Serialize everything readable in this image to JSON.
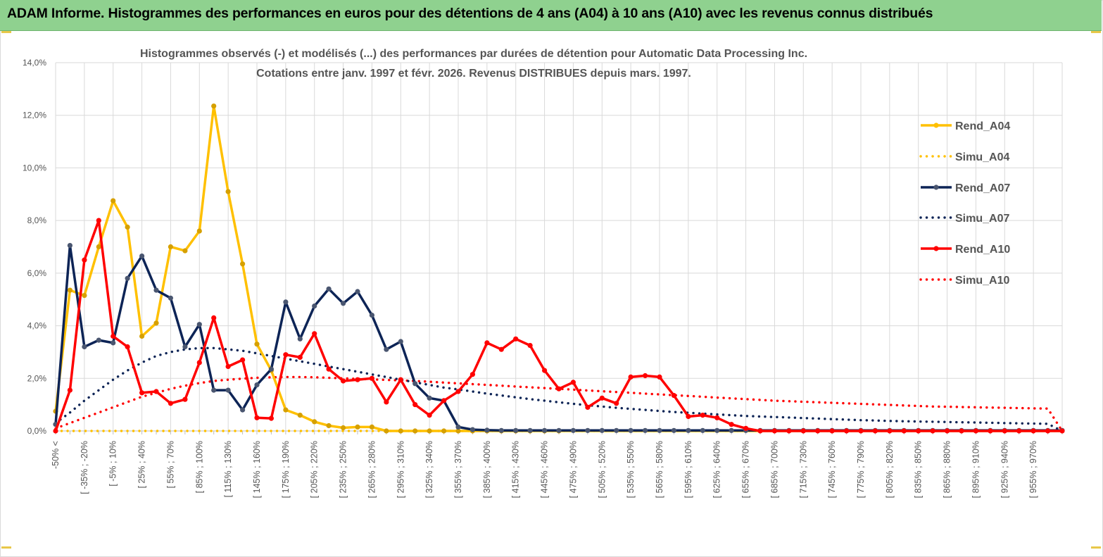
{
  "banner": {
    "title": "ADAM Informe. Histogrammes des performances en euros pour des détentions de 4 ans (A04) à 10 ans (A10) avec les revenus connus distribués"
  },
  "colors": {
    "banner_bg": "#8fd18f",
    "A04": "#ffc000",
    "A07": "#0d2456",
    "A10": "#ff0000",
    "grid": "#d9d9d9"
  },
  "chart_data": {
    "type": "line",
    "title": "Histogrammes observés (-) et modélisés (...) des performances par durées de détention pour Automatic Data Processing Inc.",
    "subtitle": "Cotations entre janv. 1997 et févr. 2026. Revenus DISTRIBUES depuis mars. 1997.",
    "ylim": [
      0,
      14
    ],
    "y_ticks": [
      "0,0%",
      "2,0%",
      "4,0%",
      "6,0%",
      "8,0%",
      "10,0%",
      "12,0%",
      "14,0%"
    ],
    "x_tick_labels": [
      "-50% <",
      "[ -35% ; -20%",
      "[ -5% ; 10%",
      "[ 25% ; 40%",
      "[ 55% ; 70%",
      "[ 85% ; 100%",
      "[ 115% ; 130%",
      "[ 145% ; 160%",
      "[ 175% ; 190%",
      "[ 205% ; 220%",
      "[ 235% ; 250%",
      "[ 265% ; 280%",
      "[ 295% ; 310%",
      "[ 325% ; 340%",
      "[ 355% ; 370%",
      "[ 385% ; 400%",
      "[ 415% ; 430%",
      "[ 445% ; 460%",
      "[ 475% ; 490%",
      "[ 505% ; 520%",
      "[ 535% ; 550%",
      "[ 565% ; 580%",
      "[ 595% ; 610%",
      "[ 625% ; 640%",
      "[ 655% ; 670%",
      "[ 685% ; 700%",
      "[ 715% ; 730%",
      "[ 745% ; 760%",
      "[ 775% ; 790%",
      "[ 805% ; 820%",
      "[ 835% ; 850%",
      "[ 865% ; 880%",
      "[ 895% ; 910%",
      "[ 925% ; 940%",
      "[ 955% ; 970%"
    ],
    "legend_position": "right",
    "grid": true,
    "series": [
      {
        "name": "Rend_A04",
        "style": "solid",
        "color": "#ffc000",
        "values": [
          0.75,
          5.35,
          5.15,
          7.0,
          8.75,
          7.75,
          3.6,
          4.1,
          7.0,
          6.85,
          7.6,
          12.35,
          9.1,
          6.35,
          3.3,
          2.3,
          0.8,
          0.6,
          0.35,
          0.2,
          0.12,
          0.15,
          0.15,
          0.0,
          0.0,
          0.0,
          0.0,
          0.0,
          0.0,
          0.0,
          0.0,
          0.0,
          0.0,
          0.0,
          0.0,
          0.0,
          0.0,
          0.0,
          0.0,
          0.0,
          0.0,
          0.0,
          0.0,
          0.0,
          0.0,
          0.0,
          0.0,
          0.0,
          0.0,
          0.0,
          0.0,
          0.0,
          0.0,
          0.0,
          0.0,
          0.0,
          0.0,
          0.0,
          0.0,
          0.0,
          0.0,
          0.0,
          0.0,
          0.0,
          0.0,
          0.0,
          0.0,
          0.0,
          0.0,
          0.0,
          0.0
        ]
      },
      {
        "name": "Simu_A04",
        "style": "dotted",
        "color": "#ffc000",
        "values": [
          0.0,
          0.0,
          0.0,
          0.0,
          0.0,
          0.0,
          0.0,
          0.0,
          0.0,
          0.0,
          0.0,
          0.0,
          0.0,
          0.0,
          0.0,
          0.0,
          0.0,
          0.0,
          0.0,
          0.0,
          0.0,
          0.0,
          0.0,
          0.0,
          0.0,
          0.0,
          0.0,
          0.0,
          0.0,
          0.0,
          0.0,
          0.0,
          0.0,
          0.0,
          0.0,
          0.0,
          0.0,
          0.0,
          0.0,
          0.0,
          0.0,
          0.0,
          0.0,
          0.0,
          0.0,
          0.0,
          0.0,
          0.0,
          0.0,
          0.0,
          0.0,
          0.0,
          0.0,
          0.0,
          0.0,
          0.0,
          0.0,
          0.0,
          0.0,
          0.0,
          0.0,
          0.0,
          0.0,
          0.0,
          0.0,
          0.0,
          0.0,
          0.0,
          0.0,
          0.0,
          0.0
        ]
      },
      {
        "name": "Rend_A07",
        "style": "solid",
        "color": "#0d2456",
        "values": [
          0.25,
          7.05,
          3.2,
          3.45,
          3.35,
          5.8,
          6.65,
          5.35,
          5.05,
          3.2,
          4.05,
          1.55,
          1.55,
          0.8,
          1.75,
          2.35,
          4.9,
          3.5,
          4.75,
          5.4,
          4.85,
          5.3,
          4.4,
          3.1,
          3.4,
          1.8,
          1.25,
          1.15,
          0.15,
          0.05,
          0.03,
          0.02,
          0.02,
          0.02,
          0.02,
          0.02,
          0.02,
          0.02,
          0.02,
          0.02,
          0.02,
          0.02,
          0.02,
          0.02,
          0.02,
          0.02,
          0.02,
          0.02,
          0.02,
          0.02,
          0.02,
          0.02,
          0.02,
          0.02,
          0.02,
          0.02,
          0.02,
          0.02,
          0.02,
          0.02,
          0.02,
          0.02,
          0.02,
          0.02,
          0.02,
          0.02,
          0.02,
          0.02,
          0.02,
          0.02,
          0.02
        ]
      },
      {
        "name": "Simu_A07",
        "style": "dotted",
        "color": "#0d2456",
        "values": [
          0.3,
          0.7,
          1.15,
          1.55,
          1.95,
          2.3,
          2.6,
          2.85,
          3.0,
          3.1,
          3.15,
          3.15,
          3.1,
          3.05,
          2.95,
          2.85,
          2.75,
          2.65,
          2.55,
          2.45,
          2.35,
          2.25,
          2.15,
          2.05,
          1.95,
          1.85,
          1.75,
          1.65,
          1.58,
          1.5,
          1.42,
          1.35,
          1.28,
          1.21,
          1.15,
          1.09,
          1.03,
          0.98,
          0.93,
          0.88,
          0.84,
          0.8,
          0.76,
          0.72,
          0.69,
          0.66,
          0.63,
          0.6,
          0.57,
          0.55,
          0.53,
          0.51,
          0.49,
          0.47,
          0.45,
          0.43,
          0.41,
          0.4,
          0.38,
          0.37,
          0.36,
          0.35,
          0.34,
          0.33,
          0.32,
          0.31,
          0.3,
          0.29,
          0.28,
          0.27,
          0.0
        ]
      },
      {
        "name": "Rend_A10",
        "style": "solid",
        "color": "#ff0000",
        "values": [
          0.0,
          1.55,
          6.5,
          8.0,
          3.6,
          3.2,
          1.45,
          1.5,
          1.05,
          1.2,
          2.6,
          4.3,
          2.45,
          2.7,
          0.5,
          0.48,
          2.9,
          2.8,
          3.7,
          2.35,
          1.9,
          1.95,
          2.0,
          1.1,
          1.95,
          1.0,
          0.6,
          1.15,
          1.5,
          2.15,
          3.35,
          3.1,
          3.5,
          3.25,
          2.3,
          1.6,
          1.85,
          0.9,
          1.25,
          1.05,
          2.05,
          2.1,
          2.05,
          1.35,
          0.55,
          0.6,
          0.5,
          0.25,
          0.1,
          0.0,
          0.0,
          0.0,
          0.0,
          0.0,
          0.0,
          0.0,
          0.0,
          0.0,
          0.0,
          0.0,
          0.0,
          0.0,
          0.0,
          0.0,
          0.0,
          0.0,
          0.0,
          0.0,
          0.0,
          0.0,
          0.0
        ]
      },
      {
        "name": "Simu_A10",
        "style": "dotted",
        "color": "#ff0000",
        "values": [
          0.1,
          0.3,
          0.5,
          0.7,
          0.9,
          1.1,
          1.3,
          1.45,
          1.6,
          1.72,
          1.82,
          1.9,
          1.95,
          1.99,
          2.02,
          2.04,
          2.05,
          2.05,
          2.04,
          2.02,
          2.0,
          1.98,
          1.96,
          1.94,
          1.92,
          1.9,
          1.87,
          1.84,
          1.81,
          1.78,
          1.75,
          1.72,
          1.69,
          1.66,
          1.63,
          1.6,
          1.57,
          1.54,
          1.51,
          1.48,
          1.45,
          1.42,
          1.39,
          1.36,
          1.33,
          1.3,
          1.27,
          1.24,
          1.21,
          1.18,
          1.15,
          1.13,
          1.11,
          1.09,
          1.07,
          1.05,
          1.03,
          1.01,
          0.99,
          0.97,
          0.95,
          0.93,
          0.92,
          0.91,
          0.9,
          0.89,
          0.88,
          0.87,
          0.86,
          0.85,
          0.0
        ]
      }
    ]
  }
}
